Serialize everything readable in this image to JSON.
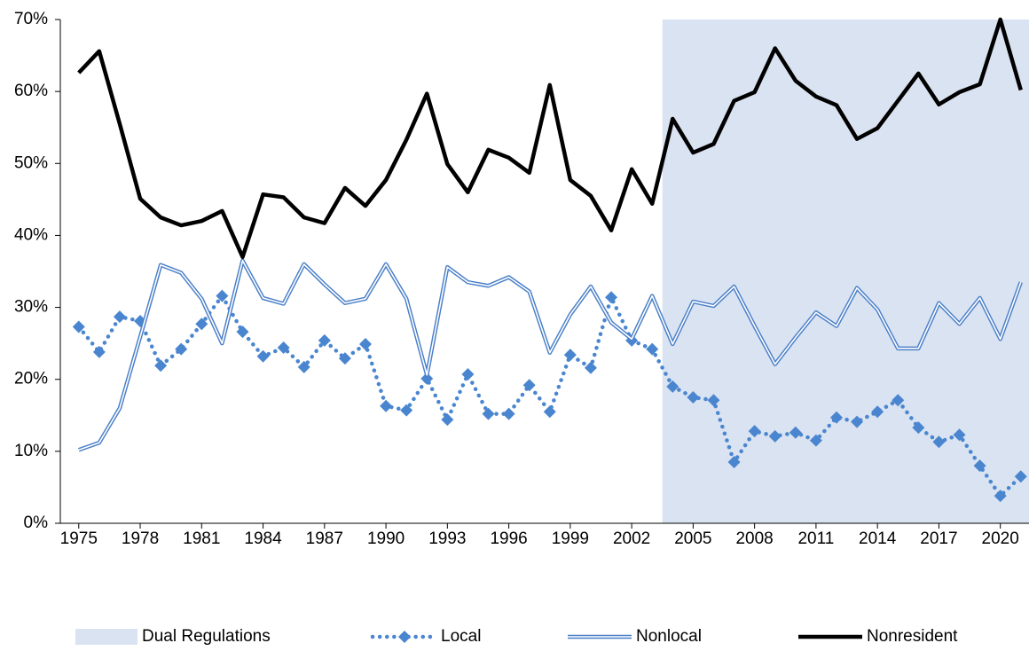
{
  "chart_data": {
    "type": "line",
    "x": [
      1975,
      1976,
      1977,
      1978,
      1979,
      1980,
      1981,
      1982,
      1983,
      1984,
      1985,
      1986,
      1987,
      1988,
      1989,
      1990,
      1991,
      1992,
      1993,
      1994,
      1995,
      1996,
      1997,
      1998,
      1999,
      2000,
      2001,
      2002,
      2003,
      2004,
      2005,
      2006,
      2007,
      2008,
      2009,
      2010,
      2011,
      2012,
      2013,
      2014,
      2015,
      2016,
      2017,
      2018,
      2019,
      2020,
      2021
    ],
    "xlim": [
      1974.1,
      2021.4
    ],
    "xticks": [
      1975,
      1978,
      1981,
      1984,
      1987,
      1990,
      1993,
      1996,
      1999,
      2002,
      2005,
      2008,
      2011,
      2014,
      2017,
      2020
    ],
    "ylim": [
      0,
      70
    ],
    "yticks": [
      {
        "value": 0,
        "label": "0%"
      },
      {
        "value": 10,
        "label": "10%"
      },
      {
        "value": 20,
        "label": "20%"
      },
      {
        "value": 30,
        "label": "30%"
      },
      {
        "value": 40,
        "label": "40%"
      },
      {
        "value": 50,
        "label": "50%"
      },
      {
        "value": 60,
        "label": "60%"
      },
      {
        "value": 70,
        "label": "70%"
      }
    ],
    "shade": {
      "name": "Dual Regulations",
      "color": "#dae3f1",
      "xrange": [
        2003.5,
        2021.4
      ]
    },
    "legend": "bottom",
    "series": [
      {
        "name": "Local",
        "color": "#4a86d0",
        "style": "dotted-diamond",
        "values": [
          27.3,
          23.8,
          28.7,
          28.1,
          21.9,
          24.2,
          27.7,
          31.6,
          26.6,
          23.2,
          24.4,
          21.7,
          25.4,
          22.9,
          24.9,
          16.3,
          15.7,
          20.1,
          14.4,
          20.7,
          15.2,
          15.2,
          19.2,
          15.5,
          23.4,
          21.6,
          31.4,
          25.4,
          24.2,
          19.0,
          17.5,
          17.1,
          8.5,
          12.8,
          12.1,
          12.6,
          11.5,
          14.7,
          14.1,
          15.5,
          17.1,
          13.3,
          11.3,
          12.3,
          8.0,
          3.8,
          6.5
        ]
      },
      {
        "name": "Nonlocal",
        "color": "#4a7fc8",
        "style": "double",
        "values": [
          10.2,
          11.2,
          16.0,
          25.9,
          35.9,
          34.8,
          31.2,
          25.0,
          36.5,
          31.3,
          30.5,
          36.0,
          33.2,
          30.6,
          31.2,
          36.0,
          31.2,
          20.6,
          35.6,
          33.5,
          33.0,
          34.2,
          32.2,
          23.7,
          29.0,
          32.9,
          27.9,
          25.6,
          31.6,
          24.9,
          30.8,
          30.2,
          32.9,
          27.4,
          22.1,
          25.8,
          29.3,
          27.4,
          32.7,
          29.7,
          24.3,
          24.3,
          30.6,
          27.7,
          31.3,
          25.6,
          33.5
        ]
      },
      {
        "name": "Nonresident",
        "color": "#000000",
        "style": "solid",
        "values": [
          62.6,
          65.6,
          55.5,
          45.1,
          42.5,
          41.4,
          42.0,
          43.4,
          37.0,
          45.7,
          45.3,
          42.5,
          41.7,
          46.6,
          44.1,
          47.7,
          53.3,
          59.7,
          49.9,
          46.0,
          51.9,
          50.8,
          48.7,
          60.9,
          47.7,
          45.5,
          40.7,
          49.2,
          44.4,
          56.2,
          51.5,
          52.7,
          58.7,
          59.9,
          66.0,
          61.5,
          59.3,
          58.1,
          53.4,
          54.9,
          58.7,
          62.5,
          58.2,
          59.9,
          61.0,
          70.0,
          60.2
        ]
      }
    ]
  }
}
